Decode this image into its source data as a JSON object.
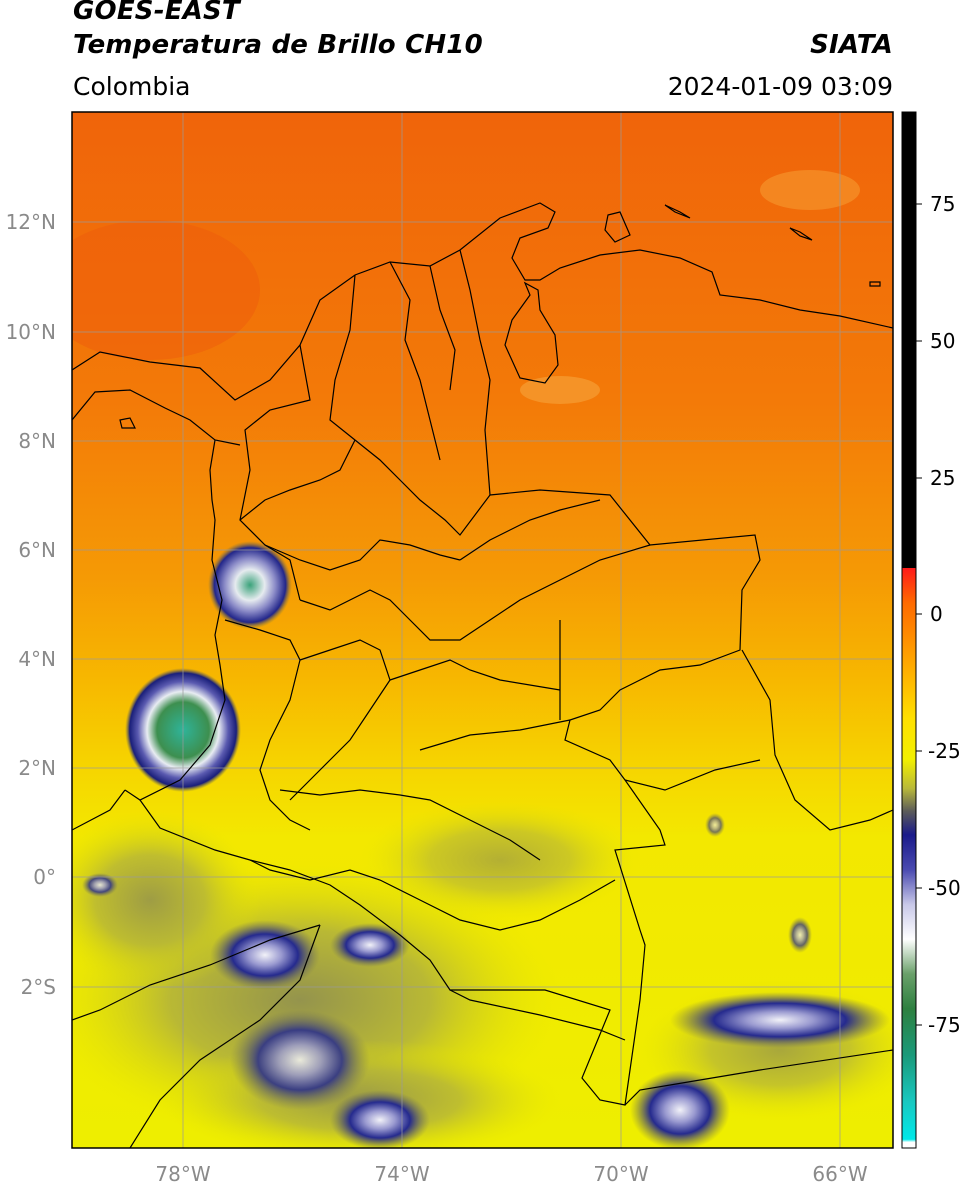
{
  "header": {
    "satellite": "GOES-EAST",
    "product": "Temperatura de Brillo CH10",
    "agency": "SIATA",
    "region": "Colombia",
    "datetime": "2024-01-09 03:09"
  },
  "map": {
    "lat_labels": [
      "12°N",
      "10°N",
      "8°N",
      "6°N",
      "4°N",
      "2°N",
      "0°",
      "2°S"
    ],
    "lon_labels": [
      "78°W",
      "74°W",
      "70°W",
      "66°W"
    ],
    "colors": {
      "warm": "#f26b0a",
      "mid": "#f7b400",
      "cool": "#f4ee00",
      "olive": "#b5b52e",
      "deep_cloud": "#1a1f8a",
      "cloud_top": "#eef0f5",
      "green_core": "#2f8f4a",
      "cyan_core": "#1fb39a",
      "border": "#000000",
      "grid": "#9a9a9a",
      "tick_text": "#8a8a8a"
    }
  },
  "colorbar": {
    "tick_labels": [
      "75",
      "50",
      "25",
      "0",
      "-25",
      "-50",
      "-75"
    ]
  }
}
